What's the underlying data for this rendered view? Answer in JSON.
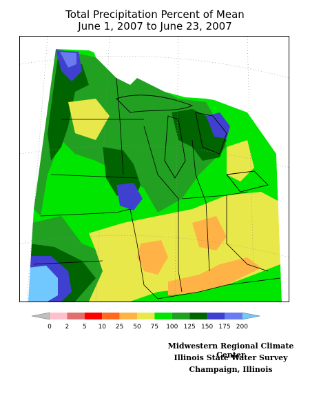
{
  "map": {
    "title_line1": "Total Precipitation Percent of Mean",
    "title_line2": "June 1, 2007 to June 23, 2007"
  },
  "legend": {
    "bins": [
      {
        "label": "0",
        "color": "#c0c0c0"
      },
      {
        "label": "2",
        "color": "#ffc0cb"
      },
      {
        "label": "5",
        "color": "#e07070"
      },
      {
        "label": "10",
        "color": "#ff0000"
      },
      {
        "label": "25",
        "color": "#ff6a20"
      },
      {
        "label": "50",
        "color": "#ffb347"
      },
      {
        "label": "75",
        "color": "#e8e84a"
      },
      {
        "label": "100",
        "color": "#00e600"
      },
      {
        "label": "125",
        "color": "#22a022"
      },
      {
        "label": "150",
        "color": "#006400"
      },
      {
        "label": "175",
        "color": "#4040d0"
      },
      {
        "label": "200",
        "color": "#6a7af0"
      },
      {
        "label": "",
        "color": "#70c8ff"
      }
    ]
  },
  "credits": {
    "line1": "Midwestern Regional Climate Center",
    "line2": "Illinois State Water Survey",
    "line3": "Champaign, Illinois"
  }
}
